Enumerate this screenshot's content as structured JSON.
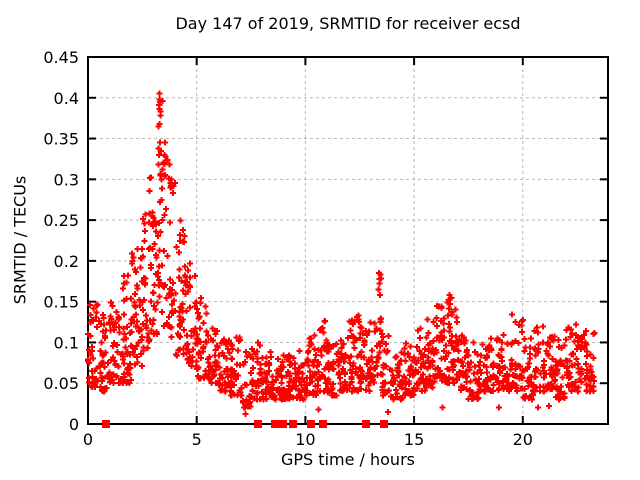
{
  "chart_data": {
    "type": "scatter",
    "title": "Day 147 of 2019, SRMTID for receiver ecsd",
    "xlabel": "GPS time / hours",
    "ylabel": "SRMTID / TECUs",
    "xlim": [
      0,
      23.92
    ],
    "ylim": [
      0,
      0.45
    ],
    "xticks": [
      {
        "v": 0,
        "label": "0"
      },
      {
        "v": 5,
        "label": "5"
      },
      {
        "v": 10,
        "label": "10"
      },
      {
        "v": 15,
        "label": "15"
      },
      {
        "v": 20,
        "label": "20"
      }
    ],
    "yticks": [
      {
        "v": 0,
        "label": "0"
      },
      {
        "v": 0.05,
        "label": "0.05"
      },
      {
        "v": 0.1,
        "label": "0.1"
      },
      {
        "v": 0.15,
        "label": "0.15"
      },
      {
        "v": 0.2,
        "label": "0.2"
      },
      {
        "v": 0.25,
        "label": "0.25"
      },
      {
        "v": 0.3,
        "label": "0.3"
      },
      {
        "v": 0.35,
        "label": "0.35"
      },
      {
        "v": 0.4,
        "label": "0.4"
      },
      {
        "v": 0.45,
        "label": "0.45"
      }
    ],
    "grid": "dashed",
    "legend": "none",
    "marker": "plus",
    "colors": {
      "points": "#ff0000",
      "grid": "#b9b9b9",
      "border": "#000000",
      "background": "#ffffff",
      "text": "#000000"
    },
    "series_bins_columns": [
      "hour_start",
      "hour_end",
      "n_points",
      "y_min_tecu",
      "y_max_tecu"
    ],
    "series_bins": [
      [
        0.0,
        0.5,
        40,
        0.045,
        0.155
      ],
      [
        0.5,
        1.0,
        40,
        0.04,
        0.135
      ],
      [
        1.0,
        1.5,
        40,
        0.05,
        0.15
      ],
      [
        1.5,
        2.0,
        44,
        0.05,
        0.185
      ],
      [
        2.0,
        2.5,
        44,
        0.07,
        0.215
      ],
      [
        2.5,
        2.75,
        22,
        0.09,
        0.27
      ],
      [
        2.75,
        3.0,
        24,
        0.1,
        0.31
      ],
      [
        3.0,
        3.2,
        18,
        0.11,
        0.26
      ],
      [
        3.2,
        3.45,
        26,
        0.13,
        0.405
      ],
      [
        3.45,
        3.75,
        22,
        0.12,
        0.345
      ],
      [
        3.75,
        4.0,
        20,
        0.1,
        0.3
      ],
      [
        4.0,
        4.5,
        42,
        0.08,
        0.25
      ],
      [
        4.5,
        5.0,
        40,
        0.07,
        0.205
      ],
      [
        5.0,
        5.5,
        38,
        0.055,
        0.155
      ],
      [
        5.5,
        6.0,
        36,
        0.05,
        0.125
      ],
      [
        6.0,
        6.5,
        36,
        0.04,
        0.105
      ],
      [
        6.5,
        7.0,
        34,
        0.035,
        0.115
      ],
      [
        7.0,
        7.5,
        30,
        0.02,
        0.09
      ],
      [
        7.5,
        8.0,
        34,
        0.03,
        0.1
      ],
      [
        8.0,
        8.5,
        34,
        0.03,
        0.095
      ],
      [
        8.5,
        9.0,
        34,
        0.03,
        0.085
      ],
      [
        9.0,
        9.5,
        34,
        0.03,
        0.085
      ],
      [
        9.5,
        10.0,
        34,
        0.03,
        0.09
      ],
      [
        10.0,
        10.5,
        36,
        0.035,
        0.11
      ],
      [
        10.5,
        11.0,
        36,
        0.04,
        0.13
      ],
      [
        11.0,
        11.5,
        34,
        0.035,
        0.1
      ],
      [
        11.5,
        12.0,
        34,
        0.04,
        0.11
      ],
      [
        12.0,
        12.5,
        38,
        0.04,
        0.135
      ],
      [
        12.5,
        13.0,
        36,
        0.04,
        0.12
      ],
      [
        13.0,
        13.3,
        22,
        0.05,
        0.13
      ],
      [
        13.3,
        13.55,
        18,
        0.06,
        0.185
      ],
      [
        13.55,
        14.0,
        26,
        0.03,
        0.12
      ],
      [
        14.0,
        14.5,
        34,
        0.03,
        0.09
      ],
      [
        14.5,
        15.0,
        34,
        0.035,
        0.1
      ],
      [
        15.0,
        15.5,
        34,
        0.04,
        0.12
      ],
      [
        15.5,
        16.0,
        36,
        0.045,
        0.13
      ],
      [
        16.0,
        16.5,
        38,
        0.05,
        0.145
      ],
      [
        16.5,
        17.0,
        40,
        0.05,
        0.16
      ],
      [
        17.0,
        17.5,
        34,
        0.04,
        0.11
      ],
      [
        17.5,
        18.0,
        34,
        0.03,
        0.1
      ],
      [
        18.0,
        18.5,
        34,
        0.04,
        0.1
      ],
      [
        18.5,
        19.0,
        34,
        0.04,
        0.105
      ],
      [
        19.0,
        19.5,
        34,
        0.04,
        0.115
      ],
      [
        19.5,
        20.0,
        36,
        0.04,
        0.135
      ],
      [
        20.0,
        20.5,
        34,
        0.03,
        0.105
      ],
      [
        20.5,
        21.0,
        36,
        0.04,
        0.12
      ],
      [
        21.0,
        21.5,
        34,
        0.04,
        0.11
      ],
      [
        21.5,
        22.0,
        34,
        0.03,
        0.105
      ],
      [
        22.0,
        22.5,
        36,
        0.04,
        0.13
      ],
      [
        22.5,
        23.0,
        36,
        0.04,
        0.12
      ],
      [
        23.0,
        23.3,
        20,
        0.04,
        0.115
      ]
    ],
    "peak_points": [
      [
        3.28,
        0.405
      ],
      [
        3.3,
        0.398
      ],
      [
        3.32,
        0.395
      ],
      [
        3.27,
        0.391
      ],
      [
        3.3,
        0.386
      ],
      [
        3.33,
        0.378
      ],
      [
        3.29,
        0.368
      ],
      [
        3.31,
        0.345
      ],
      [
        3.36,
        0.335
      ],
      [
        3.27,
        0.33
      ],
      [
        3.24,
        0.318
      ],
      [
        3.33,
        0.305
      ],
      [
        3.38,
        0.3
      ],
      [
        3.55,
        0.345
      ],
      [
        3.52,
        0.33
      ],
      [
        3.85,
        0.3
      ],
      [
        3.8,
        0.29
      ],
      [
        3.92,
        0.283
      ],
      [
        13.38,
        0.185
      ],
      [
        13.4,
        0.178
      ],
      [
        13.42,
        0.172
      ],
      [
        13.37,
        0.165
      ],
      [
        13.44,
        0.158
      ],
      [
        16.62,
        0.158
      ],
      [
        16.58,
        0.152
      ],
      [
        16.65,
        0.147
      ]
    ],
    "low_outlier_points": [
      [
        7.25,
        0.012
      ],
      [
        10.6,
        0.018
      ],
      [
        13.8,
        0.015
      ],
      [
        16.3,
        0.02
      ],
      [
        18.9,
        0.02
      ],
      [
        20.7,
        0.02
      ],
      [
        21.2,
        0.022
      ]
    ],
    "zero_value_hours": [
      0.85,
      7.8,
      8.6,
      8.95,
      9.45,
      10.25,
      10.8,
      12.8,
      13.6
    ]
  }
}
